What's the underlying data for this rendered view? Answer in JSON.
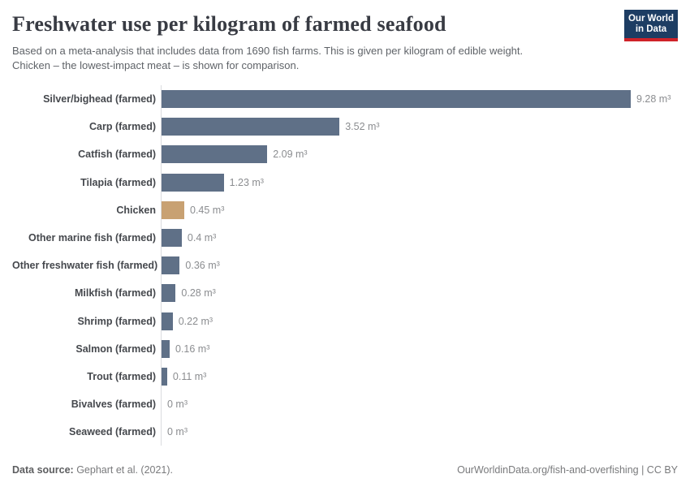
{
  "header": {
    "title": "Freshwater use per kilogram of farmed seafood",
    "subtitle_line1": "Based on a meta-analysis that includes data from 1690 fish farms. This is given per kilogram of edible weight.",
    "subtitle_line2": "Chicken – the lowest-impact meat – is shown for comparison.",
    "logo_line1": "Our World",
    "logo_line2": "in Data",
    "logo_bg_color": "#1d3d63",
    "logo_stripe_color": "#cf2229"
  },
  "chart_data": {
    "type": "bar",
    "orientation": "horizontal",
    "title": "Freshwater use per kilogram of farmed seafood",
    "unit": "m³",
    "xlim": [
      0,
      9.28
    ],
    "grid": false,
    "legend": "none",
    "categories": [
      "Silver/bighead (farmed)",
      "Carp (farmed)",
      "Catfish (farmed)",
      "Tilapia (farmed)",
      "Chicken",
      "Other marine fish (farmed)",
      "Other freshwater fish (farmed)",
      "Milkfish (farmed)",
      "Shrimp (farmed)",
      "Salmon (farmed)",
      "Trout (farmed)",
      "Bivalves (farmed)",
      "Seaweed (farmed)"
    ],
    "values": [
      9.28,
      3.52,
      2.09,
      1.23,
      0.45,
      0.4,
      0.36,
      0.28,
      0.22,
      0.16,
      0.11,
      0,
      0
    ],
    "value_labels": [
      "9.28 m³",
      "3.52 m³",
      "2.09 m³",
      "1.23 m³",
      "0.45 m³",
      "0.4 m³",
      "0.36 m³",
      "0.28 m³",
      "0.22 m³",
      "0.16 m³",
      "0.11 m³",
      "0 m³",
      "0 m³"
    ],
    "bar_color": "#5f7087",
    "highlight_color": "#c8a172",
    "highlight_index": 4,
    "axis_line_color": "#dadcdf"
  },
  "footer": {
    "datasource_label": "Data source:",
    "datasource_value": " Gephart et al. (2021).",
    "credit": "OurWorldinData.org/fish-and-overfishing | CC BY"
  }
}
